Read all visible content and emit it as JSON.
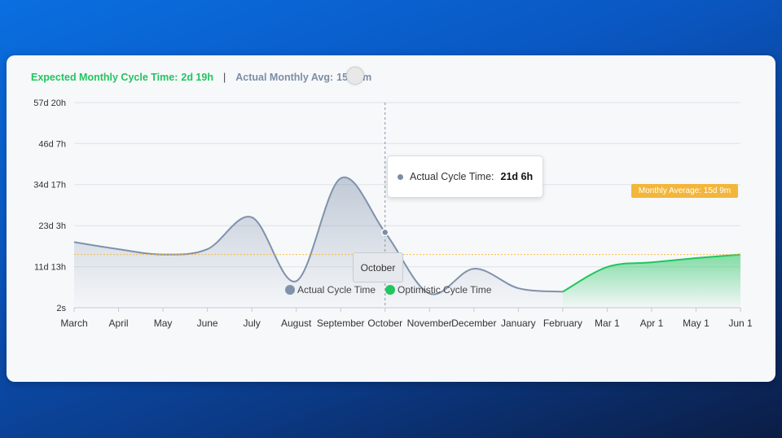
{
  "summary": {
    "expected_label": "Expected Monthly Cycle Time:",
    "expected_value": "2d 19h",
    "separator": "|",
    "actual_label": "Actual Monthly Avg:",
    "actual_value": "15d 9m"
  },
  "tooltip": {
    "label": "Actual Cycle Time:",
    "value": "21d 6h"
  },
  "highlight_x_label": "October",
  "average_badge": "Monthly Average: 15d 9m",
  "legend": [
    {
      "label": "Actual Cycle Time",
      "color": "#8091ab"
    },
    {
      "label": "Optimistic Cycle Time",
      "color": "#22c55e"
    }
  ],
  "chart_data": {
    "type": "area",
    "x_labels": [
      "March",
      "April",
      "May",
      "June",
      "July",
      "August",
      "September",
      "October",
      "November",
      "December",
      "January",
      "February",
      "Mar 1",
      "Apr 1",
      "May 1",
      "Jun 1"
    ],
    "y_ticks": [
      "2s",
      "11d 13h",
      "23d 3h",
      "34d 17h",
      "46d 7h",
      "57d 20h"
    ],
    "y_tick_days": [
      0,
      11.54,
      23.13,
      34.71,
      46.29,
      57.83
    ],
    "ylim_days": [
      0,
      57.83
    ],
    "series": [
      {
        "name": "Actual Cycle Time",
        "color": "#8091ab",
        "x_index": [
          0,
          1,
          2,
          3,
          4,
          5,
          6,
          7,
          8,
          9,
          10,
          11
        ],
        "values_days": [
          18.5,
          16.5,
          15.0,
          16.5,
          25.5,
          7.5,
          36.5,
          21.25,
          4.0,
          11.0,
          5.5,
          4.5
        ]
      },
      {
        "name": "Optimistic Cycle Time",
        "color": "#22c55e",
        "x_index": [
          11,
          12,
          13,
          14,
          15
        ],
        "values_days": [
          4.5,
          11.5,
          12.8,
          14.0,
          15.0
        ]
      }
    ],
    "monthly_average_days": 15.0,
    "grid": true,
    "legend_position": "bottom"
  }
}
